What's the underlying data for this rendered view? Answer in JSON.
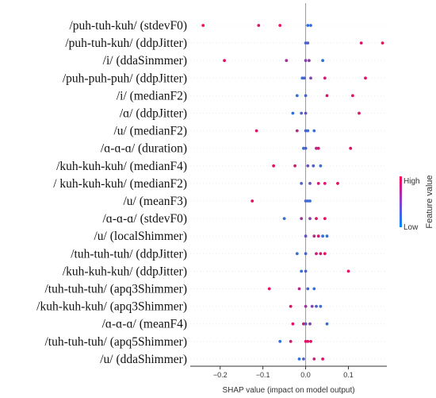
{
  "chart_data": {
    "type": "scatter",
    "subtype": "shap-beeswarm",
    "xlabel": "SHAP value (impact on model output)",
    "xlim": [
      -0.27,
      0.19
    ],
    "xticks": [
      -0.2,
      -0.1,
      0.0,
      0.1
    ],
    "xtick_labels": [
      "−0.2",
      "−0.1",
      "0.0",
      "0.1"
    ],
    "zero_line": true,
    "colorbar": {
      "title": "Feature value",
      "high_label": "High",
      "low_label": "Low",
      "high_color": "#ff0052",
      "low_color": "#008bfb"
    },
    "features": [
      {
        "label": "/puh-tuh-kuh/ (stdevF0)",
        "points": [
          [
            -0.24,
            1.0
          ],
          [
            -0.11,
            0.85
          ],
          [
            -0.06,
            0.9
          ],
          [
            0.005,
            0.2
          ],
          [
            0.012,
            0.2
          ]
        ]
      },
      {
        "label": "/puh-tuh-kuh/ (ddpJitter)",
        "points": [
          [
            0.0,
            0.3
          ],
          [
            0.005,
            0.3
          ],
          [
            0.13,
            0.85
          ],
          [
            0.18,
            0.95
          ]
        ]
      },
      {
        "label": "/i/ (ddaSinmmer)",
        "points": [
          [
            -0.19,
            0.9
          ],
          [
            -0.045,
            0.6
          ],
          [
            0.0,
            0.5
          ],
          [
            0.008,
            0.55
          ],
          [
            0.04,
            0.2
          ]
        ]
      },
      {
        "label": "/puh-puh-puh/ (ddpJitter)",
        "points": [
          [
            -0.008,
            0.2
          ],
          [
            -0.003,
            0.3
          ],
          [
            0.012,
            0.5
          ],
          [
            0.045,
            0.8
          ],
          [
            0.14,
            0.9
          ]
        ]
      },
      {
        "label": "/i/ (medianF2)",
        "points": [
          [
            -0.02,
            0.2
          ],
          [
            0.0,
            0.3
          ],
          [
            0.05,
            0.85
          ],
          [
            0.11,
            0.9
          ]
        ]
      },
      {
        "label": "/ɑ/ (ddpJitter)",
        "points": [
          [
            -0.03,
            0.2
          ],
          [
            -0.01,
            0.3
          ],
          [
            0.0,
            0.4
          ],
          [
            0.125,
            0.85
          ]
        ]
      },
      {
        "label": "/u/ (medianF2)",
        "points": [
          [
            -0.115,
            0.85
          ],
          [
            -0.02,
            0.7
          ],
          [
            0.0,
            0.3
          ],
          [
            0.005,
            0.2
          ],
          [
            0.02,
            0.2
          ]
        ]
      },
      {
        "label": "/ɑ-ɑ-ɑ/ (duration)",
        "points": [
          [
            -0.005,
            0.2
          ],
          [
            0.0,
            0.3
          ],
          [
            0.025,
            0.7
          ],
          [
            0.03,
            0.8
          ],
          [
            0.105,
            0.9
          ]
        ]
      },
      {
        "label": "/kuh-kuh-kuh/ (medianF4)",
        "points": [
          [
            -0.075,
            0.9
          ],
          [
            -0.025,
            0.8
          ],
          [
            0.005,
            0.4
          ],
          [
            0.018,
            0.3
          ],
          [
            0.035,
            0.2
          ]
        ]
      },
      {
        "label": "/ kuh-kuh-kuh/ (medianF2)",
        "points": [
          [
            -0.01,
            0.3
          ],
          [
            0.01,
            0.4
          ],
          [
            0.03,
            0.8
          ],
          [
            0.045,
            0.85
          ],
          [
            0.075,
            0.9
          ]
        ]
      },
      {
        "label": "/u/ (meanF3)",
        "points": [
          [
            -0.125,
            0.9
          ],
          [
            0.0,
            0.3
          ],
          [
            0.005,
            0.25
          ],
          [
            0.01,
            0.2
          ]
        ]
      },
      {
        "label": "/ɑ-ɑ-ɑ/ (stdevF0)",
        "points": [
          [
            -0.05,
            0.2
          ],
          [
            -0.01,
            0.6
          ],
          [
            0.01,
            0.5
          ],
          [
            0.025,
            0.85
          ],
          [
            0.045,
            0.9
          ]
        ]
      },
      {
        "label": "/u/ (localShimmer)",
        "points": [
          [
            0.0,
            0.4
          ],
          [
            0.02,
            0.7
          ],
          [
            0.03,
            0.8
          ],
          [
            0.04,
            0.2
          ],
          [
            0.05,
            0.2
          ]
        ]
      },
      {
        "label": "/tuh-tuh-tuh/ (ddpJitter)",
        "points": [
          [
            -0.02,
            0.2
          ],
          [
            0.0,
            0.3
          ],
          [
            0.025,
            0.8
          ],
          [
            0.035,
            0.85
          ],
          [
            0.045,
            0.9
          ]
        ]
      },
      {
        "label": "/kuh-kuh-kuh/ (ddpJitter)",
        "points": [
          [
            -0.01,
            0.2
          ],
          [
            0.0,
            0.3
          ],
          [
            0.1,
            0.9
          ]
        ]
      },
      {
        "label": "/tuh-tuh-tuh/ (apq3Shimmer)",
        "points": [
          [
            -0.085,
            0.9
          ],
          [
            -0.015,
            0.7
          ],
          [
            0.005,
            0.3
          ],
          [
            0.02,
            0.2
          ]
        ]
      },
      {
        "label": "/kuh-kuh-kuh/ (apq3Shimmer)",
        "points": [
          [
            -0.035,
            0.9
          ],
          [
            0.0,
            0.6
          ],
          [
            0.015,
            0.5
          ],
          [
            0.025,
            0.3
          ],
          [
            0.035,
            0.2
          ]
        ]
      },
      {
        "label": "/ɑ-ɑ-ɑ/ (meanF4)",
        "points": [
          [
            -0.03,
            0.9
          ],
          [
            -0.005,
            0.8
          ],
          [
            0.0,
            0.4
          ],
          [
            0.01,
            0.5
          ],
          [
            0.05,
            0.2
          ]
        ]
      },
      {
        "label": "/tuh-tuh-tuh/ (apq5Shimmer)",
        "points": [
          [
            -0.06,
            0.2
          ],
          [
            -0.035,
            0.8
          ],
          [
            0.0,
            0.9
          ],
          [
            0.005,
            0.85
          ],
          [
            0.012,
            0.9
          ]
        ]
      },
      {
        "label": "/u/ (ddaShimmer)",
        "points": [
          [
            -0.015,
            0.2
          ],
          [
            -0.005,
            0.3
          ],
          [
            0.02,
            0.8
          ],
          [
            0.04,
            0.9
          ]
        ]
      }
    ]
  }
}
